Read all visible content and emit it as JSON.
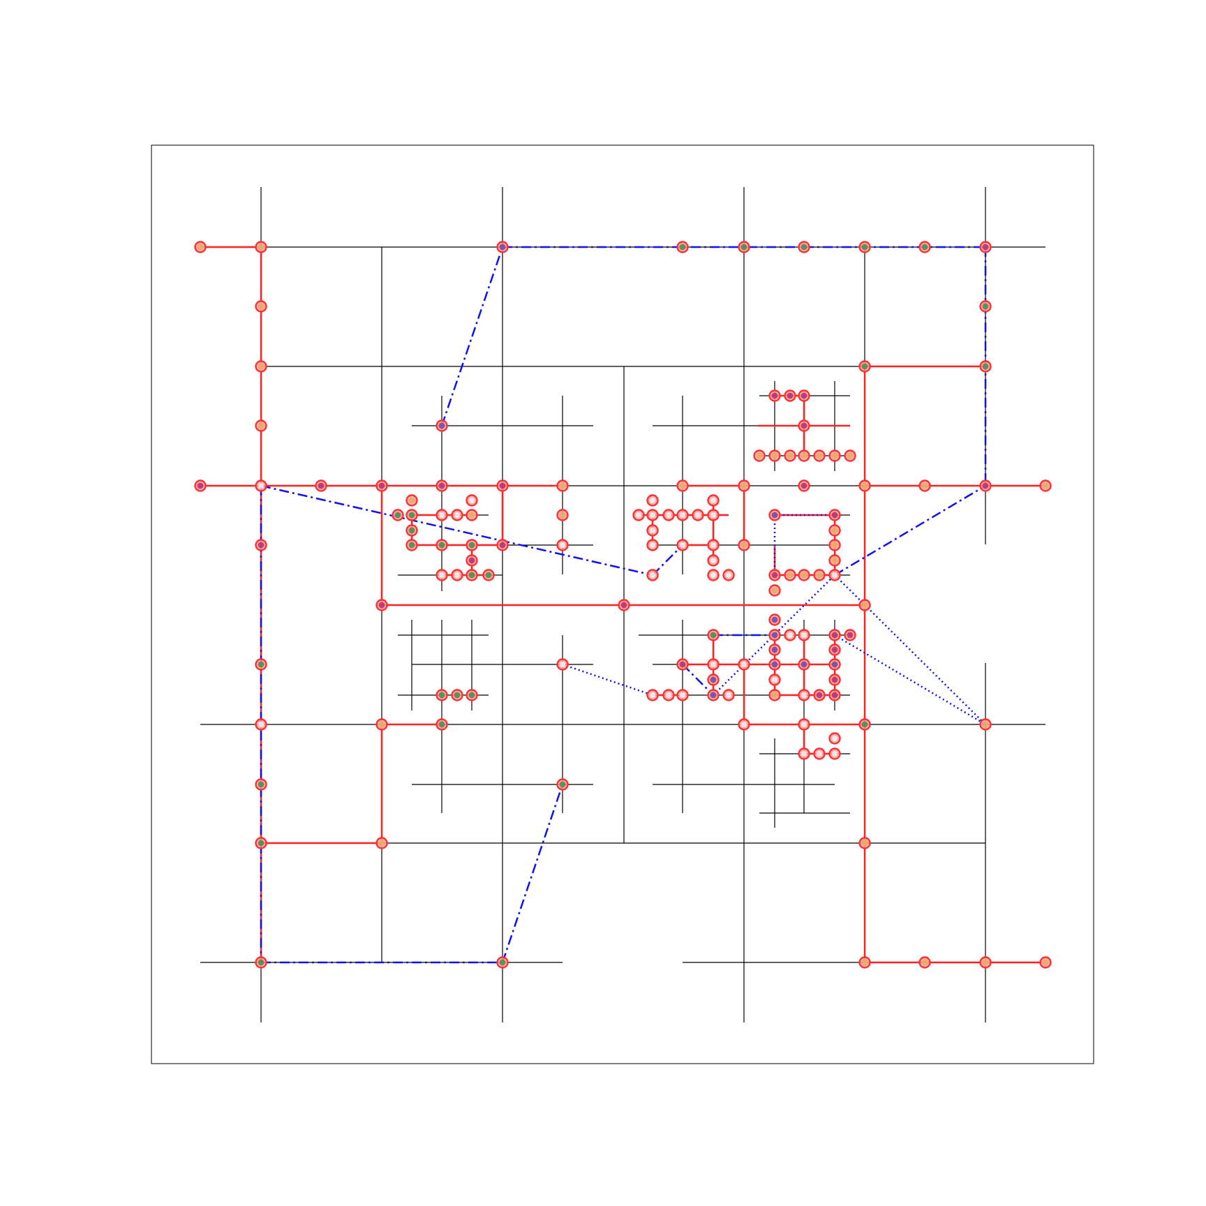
{
  "diagram": {
    "kind": "graph-network-overlay",
    "colors": {
      "grid_edge": "#000000",
      "route": "#ff0000",
      "route_node_fill": "#f4a6a6",
      "node_outline": "#ff3030",
      "link": "#0000ff",
      "node_green": "#5a8a4a",
      "node_orange": "#f0a860",
      "node_magenta": "#c0306a",
      "node_purple": "#7a4aa0",
      "frame": "#000000"
    }
  }
}
